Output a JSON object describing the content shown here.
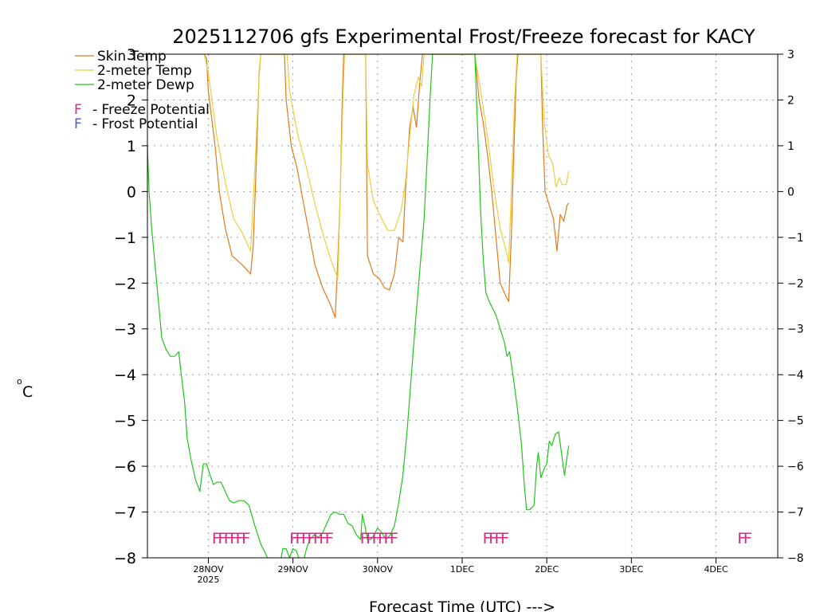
{
  "chart_data": {
    "type": "line",
    "title": "2025112706 gfs Experimental Frost/Freeze forecast for KACY",
    "xlabel": "Forecast Time (UTC) --->",
    "ylabel": "°C",
    "ylabel_unit": "o C",
    "ylim": [
      -8,
      3
    ],
    "x_unit": "days since 27NOV2025 00Z",
    "xlim": [
      0.28,
      7.73
    ],
    "grid": true,
    "yticks": [
      -8,
      -7,
      -6,
      -5,
      -4,
      -3,
      -2,
      -1,
      0,
      1,
      2,
      3
    ],
    "ytick_labels": [
      "−8",
      "−7",
      "−6",
      "−5",
      "−4",
      "−3",
      "−2",
      "−1",
      "0",
      "1",
      "2",
      "3"
    ],
    "xticks": [
      {
        "x": 1,
        "label": "28NOV",
        "sublabel": "2025"
      },
      {
        "x": 2,
        "label": "29NOV",
        "sublabel": ""
      },
      {
        "x": 3,
        "label": "30NOV",
        "sublabel": ""
      },
      {
        "x": 4,
        "label": "1DEC",
        "sublabel": ""
      },
      {
        "x": 5,
        "label": "2DEC",
        "sublabel": ""
      },
      {
        "x": 6,
        "label": "3DEC",
        "sublabel": ""
      },
      {
        "x": 7,
        "label": "4DEC",
        "sublabel": ""
      }
    ],
    "series": [
      {
        "name": "Skin Temp",
        "color": "#e07b1a",
        "points": [
          [
            0.95,
            3.0
          ],
          [
            0.98,
            2.9
          ],
          [
            1.0,
            2.2
          ],
          [
            1.08,
            1.0
          ],
          [
            1.13,
            0.0
          ],
          [
            1.2,
            -0.8
          ],
          [
            1.28,
            -1.4
          ],
          [
            1.4,
            -1.6
          ],
          [
            1.5,
            -1.8
          ],
          [
            1.53,
            -1.2
          ],
          [
            1.57,
            0.8
          ],
          [
            1.6,
            2.6
          ],
          [
            1.62,
            3.0
          ],
          [
            1.9,
            3.0
          ],
          [
            1.92,
            2.0
          ],
          [
            1.98,
            1.0
          ],
          [
            2.05,
            0.5
          ],
          [
            2.1,
            0.0
          ],
          [
            2.18,
            -0.8
          ],
          [
            2.26,
            -1.6
          ],
          [
            2.35,
            -2.1
          ],
          [
            2.45,
            -2.5
          ],
          [
            2.5,
            -2.75
          ],
          [
            2.53,
            -1.5
          ],
          [
            2.56,
            0.0
          ],
          [
            2.58,
            1.8
          ],
          [
            2.6,
            3.0
          ],
          [
            2.86,
            3.0
          ],
          [
            2.88,
            -1.4
          ],
          [
            2.95,
            -1.8
          ],
          [
            3.02,
            -1.9
          ],
          [
            3.08,
            -2.1
          ],
          [
            3.14,
            -2.15
          ],
          [
            3.2,
            -1.8
          ],
          [
            3.25,
            -1.0
          ],
          [
            3.3,
            -1.1
          ],
          [
            3.33,
            0.0
          ],
          [
            3.38,
            1.4
          ],
          [
            3.42,
            1.85
          ],
          [
            3.46,
            1.4
          ],
          [
            3.5,
            2.4
          ],
          [
            3.53,
            3.0
          ],
          [
            4.15,
            3.0
          ],
          [
            4.2,
            2.0
          ],
          [
            4.25,
            1.5
          ],
          [
            4.3,
            0.8
          ],
          [
            4.35,
            0.0
          ],
          [
            4.4,
            -1.0
          ],
          [
            4.45,
            -2.0
          ],
          [
            4.52,
            -2.3
          ],
          [
            4.55,
            -2.4
          ],
          [
            4.58,
            -1.0
          ],
          [
            4.61,
            0.8
          ],
          [
            4.64,
            2.5
          ],
          [
            4.66,
            3.0
          ],
          [
            4.93,
            3.0
          ],
          [
            4.95,
            1.5
          ],
          [
            4.98,
            0.0
          ],
          [
            5.03,
            -0.3
          ],
          [
            5.08,
            -0.6
          ],
          [
            5.12,
            -1.3
          ],
          [
            5.16,
            -0.5
          ],
          [
            5.2,
            -0.65
          ],
          [
            5.24,
            -0.3
          ],
          [
            5.26,
            -0.25
          ]
        ]
      },
      {
        "name": "2-meter Temp",
        "color": "#e8cf3c",
        "points": [
          [
            0.95,
            3.0
          ],
          [
            1.0,
            2.6
          ],
          [
            1.1,
            1.2
          ],
          [
            1.2,
            0.2
          ],
          [
            1.3,
            -0.6
          ],
          [
            1.4,
            -0.9
          ],
          [
            1.5,
            -1.3
          ],
          [
            1.55,
            0.5
          ],
          [
            1.6,
            2.5
          ],
          [
            1.62,
            3.0
          ],
          [
            1.93,
            3.0
          ],
          [
            1.96,
            2.2
          ],
          [
            2.05,
            1.3
          ],
          [
            2.15,
            0.6
          ],
          [
            2.25,
            -0.2
          ],
          [
            2.35,
            -0.9
          ],
          [
            2.45,
            -1.5
          ],
          [
            2.53,
            -1.9
          ],
          [
            2.56,
            0.0
          ],
          [
            2.59,
            2.0
          ],
          [
            2.61,
            3.0
          ],
          [
            2.86,
            3.0
          ],
          [
            2.88,
            0.6
          ],
          [
            2.95,
            -0.2
          ],
          [
            3.05,
            -0.6
          ],
          [
            3.12,
            -0.85
          ],
          [
            3.2,
            -0.85
          ],
          [
            3.28,
            -0.4
          ],
          [
            3.33,
            0.2
          ],
          [
            3.38,
            1.2
          ],
          [
            3.43,
            2.1
          ],
          [
            3.48,
            2.5
          ],
          [
            3.52,
            2.3
          ],
          [
            3.55,
            3.0
          ],
          [
            4.15,
            3.0
          ],
          [
            4.22,
            2.2
          ],
          [
            4.3,
            1.2
          ],
          [
            4.38,
            0.0
          ],
          [
            4.45,
            -0.8
          ],
          [
            4.52,
            -1.3
          ],
          [
            4.55,
            -1.55
          ],
          [
            4.58,
            0.0
          ],
          [
            4.62,
            2.0
          ],
          [
            4.65,
            3.0
          ],
          [
            4.93,
            3.0
          ],
          [
            4.97,
            1.5
          ],
          [
            5.02,
            0.8
          ],
          [
            5.07,
            0.6
          ],
          [
            5.11,
            0.1
          ],
          [
            5.15,
            0.3
          ],
          [
            5.18,
            0.15
          ],
          [
            5.23,
            0.15
          ],
          [
            5.26,
            0.45
          ]
        ]
      },
      {
        "name": "2-meter Dewp",
        "color": "#22c41e",
        "points": [
          [
            0.28,
            1.0
          ],
          [
            0.3,
            0.0
          ],
          [
            0.33,
            -0.8
          ],
          [
            0.38,
            -1.8
          ],
          [
            0.42,
            -2.6
          ],
          [
            0.45,
            -3.2
          ],
          [
            0.5,
            -3.45
          ],
          [
            0.55,
            -3.6
          ],
          [
            0.6,
            -3.6
          ],
          [
            0.65,
            -3.5
          ],
          [
            0.68,
            -4.0
          ],
          [
            0.72,
            -4.6
          ],
          [
            0.75,
            -5.4
          ],
          [
            0.8,
            -5.9
          ],
          [
            0.85,
            -6.3
          ],
          [
            0.9,
            -6.55
          ],
          [
            0.94,
            -5.95
          ],
          [
            0.98,
            -5.95
          ],
          [
            1.02,
            -6.2
          ],
          [
            1.06,
            -6.4
          ],
          [
            1.1,
            -6.35
          ],
          [
            1.15,
            -6.35
          ],
          [
            1.2,
            -6.55
          ],
          [
            1.25,
            -6.75
          ],
          [
            1.3,
            -6.8
          ],
          [
            1.36,
            -6.75
          ],
          [
            1.42,
            -6.75
          ],
          [
            1.48,
            -6.85
          ],
          [
            1.55,
            -7.3
          ],
          [
            1.62,
            -7.7
          ],
          [
            1.7,
            -8.0
          ],
          [
            1.72,
            -8.1
          ],
          [
            1.85,
            -8.1
          ],
          [
            1.88,
            -7.8
          ],
          [
            1.92,
            -7.8
          ],
          [
            1.96,
            -8.0
          ],
          [
            2.0,
            -7.8
          ],
          [
            2.04,
            -7.85
          ],
          [
            2.08,
            -8.05
          ],
          [
            2.12,
            -8.1
          ],
          [
            2.16,
            -7.8
          ],
          [
            2.2,
            -7.6
          ],
          [
            2.25,
            -7.5
          ],
          [
            2.3,
            -7.55
          ],
          [
            2.35,
            -7.45
          ],
          [
            2.4,
            -7.25
          ],
          [
            2.45,
            -7.05
          ],
          [
            2.5,
            -7.0
          ],
          [
            2.55,
            -7.05
          ],
          [
            2.6,
            -7.05
          ],
          [
            2.65,
            -7.25
          ],
          [
            2.7,
            -7.3
          ],
          [
            2.75,
            -7.5
          ],
          [
            2.8,
            -7.6
          ],
          [
            2.82,
            -7.05
          ],
          [
            2.85,
            -7.3
          ],
          [
            2.88,
            -7.6
          ],
          [
            2.92,
            -7.6
          ],
          [
            2.96,
            -7.5
          ],
          [
            3.0,
            -7.35
          ],
          [
            3.05,
            -7.45
          ],
          [
            3.1,
            -7.6
          ],
          [
            3.15,
            -7.5
          ],
          [
            3.2,
            -7.3
          ],
          [
            3.25,
            -6.8
          ],
          [
            3.3,
            -6.2
          ],
          [
            3.35,
            -5.2
          ],
          [
            3.4,
            -4.0
          ],
          [
            3.45,
            -2.8
          ],
          [
            3.5,
            -1.7
          ],
          [
            3.55,
            -0.6
          ],
          [
            3.58,
            0.5
          ],
          [
            3.62,
            2.0
          ],
          [
            3.65,
            3.0
          ],
          [
            4.15,
            3.0
          ],
          [
            4.18,
            1.5
          ],
          [
            4.22,
            -0.5
          ],
          [
            4.25,
            -1.5
          ],
          [
            4.28,
            -2.2
          ],
          [
            4.32,
            -2.4
          ],
          [
            4.4,
            -2.7
          ],
          [
            4.45,
            -3.0
          ],
          [
            4.5,
            -3.3
          ],
          [
            4.53,
            -3.6
          ],
          [
            4.56,
            -3.5
          ],
          [
            4.6,
            -4.0
          ],
          [
            4.65,
            -4.7
          ],
          [
            4.7,
            -5.5
          ],
          [
            4.73,
            -6.3
          ],
          [
            4.76,
            -6.95
          ],
          [
            4.8,
            -6.95
          ],
          [
            4.85,
            -6.85
          ],
          [
            4.88,
            -6.0
          ],
          [
            4.9,
            -5.7
          ],
          [
            4.93,
            -6.25
          ],
          [
            4.97,
            -6.05
          ],
          [
            5.0,
            -5.95
          ],
          [
            5.03,
            -5.45
          ],
          [
            5.06,
            -5.55
          ],
          [
            5.1,
            -5.3
          ],
          [
            5.14,
            -5.25
          ],
          [
            5.18,
            -5.8
          ],
          [
            5.21,
            -6.2
          ],
          [
            5.24,
            -5.8
          ],
          [
            5.26,
            -5.55
          ]
        ]
      }
    ],
    "frost_freeze_markers": [
      {
        "x": 1.25,
        "label": "FFFFFF",
        "type": "freeze"
      },
      {
        "x": 2.2,
        "label": "FFFFFFF",
        "type": "freeze"
      },
      {
        "x": 3.0,
        "label": "FFFFFF",
        "type": "freeze"
      },
      {
        "x": 4.38,
        "label": "FFFF",
        "type": "freeze"
      },
      {
        "x": 7.32,
        "label": "FF",
        "type": "freeze"
      }
    ],
    "marker_y": -7.55,
    "legend": {
      "position": "top-left",
      "entries": [
        {
          "label": "Skin Temp",
          "color": "#e07b1a"
        },
        {
          "label": "2-meter Temp",
          "color": "#e8cf3c"
        },
        {
          "label": "2-meter Dewp",
          "color": "#22c41e"
        }
      ],
      "freeze_note": {
        "symbol": "F",
        "text": "- Freeze Potential",
        "color": "#d62a8a"
      },
      "frost_note": {
        "symbol": "F",
        "text": "- Frost Potential",
        "color": "#4a5ad8"
      }
    }
  }
}
